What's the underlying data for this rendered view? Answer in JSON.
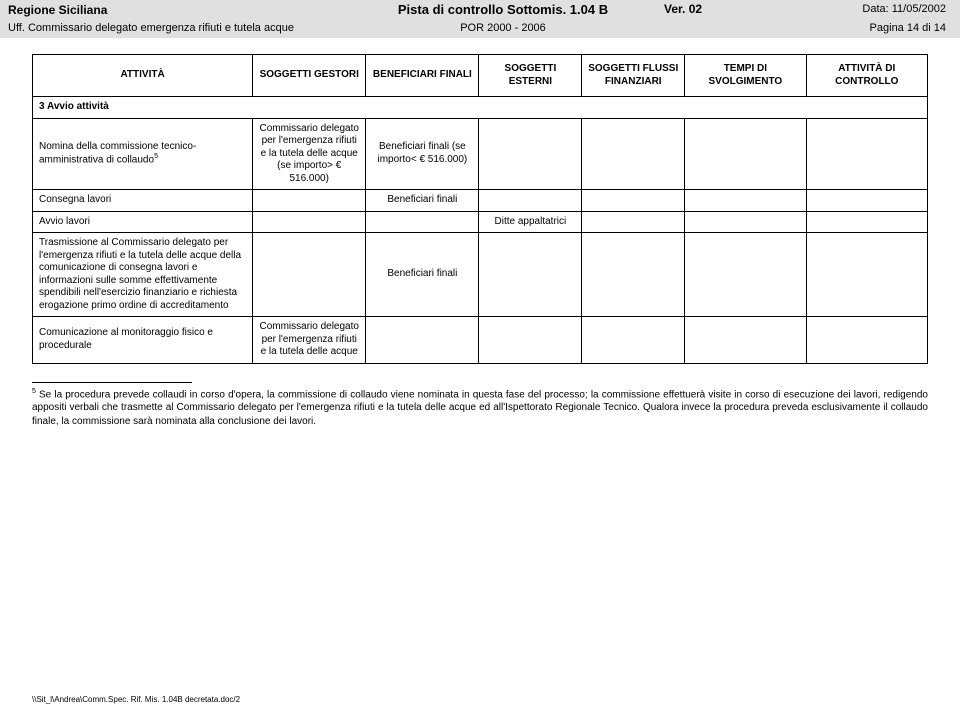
{
  "header": {
    "region": "Regione Siciliana",
    "title": "Pista di controllo Sottomis. 1.04 B",
    "ver": "Ver. 02",
    "date": "Data: 11/05/2002",
    "office": "Uff. Commissario delegato emergenza rifiuti e tutela acque",
    "program": "POR 2000 - 2006",
    "page": "Pagina 14 di 14",
    "bg_top": "#e0e0e0",
    "bg_sub": "#e0e0e0"
  },
  "table": {
    "headers": {
      "activity": "ATTIVITÀ",
      "gestori": "SOGGETTI GESTORI",
      "beneficiari": "BENEFICIARI FINALI",
      "esterni": "SOGGETTI ESTERNI",
      "flussi": "SOGGETTI FLUSSI FINANZIARI",
      "tempi": "TEMPI DI SVOLGIMENTO",
      "controllo": "ATTIVITÀ DI CONTROLLO"
    },
    "section": "3 Avvio attività",
    "rows": [
      {
        "activity": "Nomina della commissione tecnico-amministrativa di collaudo",
        "activity_sup": "5",
        "gestori": "Commissario delegato per l'emergenza rifiuti e la tutela delle acque (se importo> € 516.000)",
        "beneficiari": "Beneficiari finali (se importo< € 516.000)",
        "esterni": "",
        "flussi": "",
        "tempi": "",
        "controllo": ""
      },
      {
        "activity": "Consegna lavori",
        "gestori": "",
        "beneficiari": "Beneficiari finali",
        "esterni": "",
        "flussi": "",
        "tempi": "",
        "controllo": ""
      },
      {
        "activity": "Avvio lavori",
        "gestori": "",
        "beneficiari": "",
        "esterni": "Ditte appaltatrici",
        "flussi": "",
        "tempi": "",
        "controllo": ""
      },
      {
        "activity": "Trasmissione al Commissario delegato per l'emergenza rifiuti e la tutela delle acque della comunicazione di consegna lavori e informazioni sulle somme effettivamente spendibili nell'esercizio finanziario e richiesta erogazione primo ordine di accreditamento",
        "gestori": "",
        "beneficiari": "Beneficiari finali",
        "esterni": "",
        "flussi": "",
        "tempi": "",
        "controllo": ""
      },
      {
        "activity": "Comunicazione al monitoraggio fisico e procedurale",
        "gestori": "Commissario delegato per l'emergenza rifiuti e la tutela delle acque",
        "beneficiari": "",
        "esterni": "",
        "flussi": "",
        "tempi": "",
        "controllo": ""
      }
    ]
  },
  "footnote": {
    "num": "5",
    "text": " Se la procedura prevede collaudi in corso d'opera, la commissione di collaudo viene nominata in questa fase del processo; la commissione effettuerà visite in corso di esecuzione dei lavori, redigendo appositi verbali che trasmette al Commissario delegato per l'emergenza rifiuti e la tutela delle acque ed all'Ispettorato Regionale Tecnico. Qualora invece la procedura preveda esclusivamente il collaudo finale, la commissione sarà nominata alla conclusione dei lavori."
  },
  "footer_path": "\\\\Sit_l\\Andrea\\Comm.Spec. Rif. Mis. 1.04B decretata.doc/2"
}
